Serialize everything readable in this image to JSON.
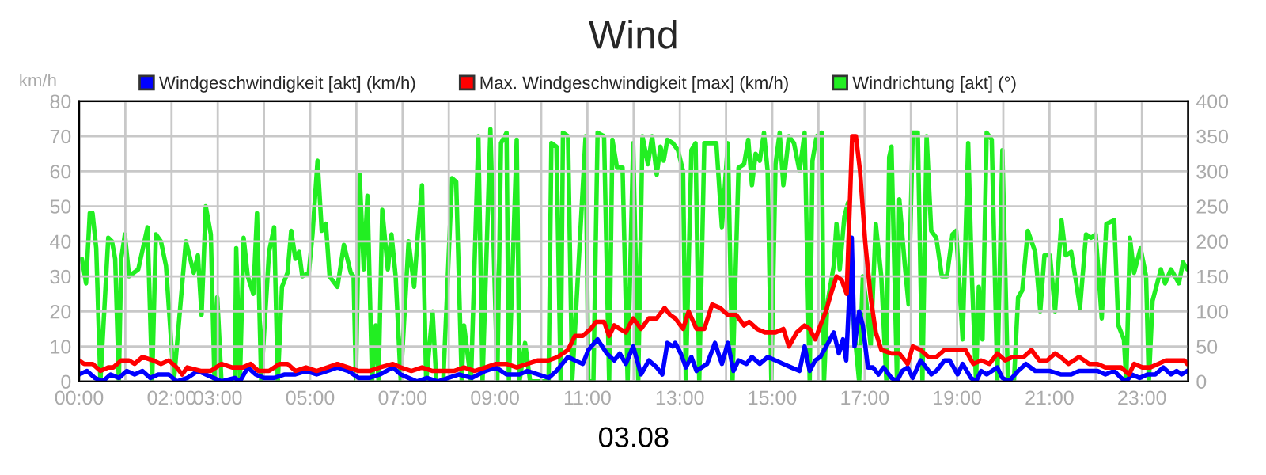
{
  "chart_data": {
    "type": "line",
    "title": "Wind",
    "xlabel": "03.08",
    "ylabel": "km/h",
    "xlim": [
      0,
      24
    ],
    "xticks": [
      {
        "value": 0,
        "label": "00:00"
      },
      {
        "value": 1,
        "label": null
      },
      {
        "value": 2,
        "label": "02:00"
      },
      {
        "value": 3,
        "label": "03:00"
      },
      {
        "value": 4,
        "label": null
      },
      {
        "value": 5,
        "label": "05:00"
      },
      {
        "value": 6,
        "label": null
      },
      {
        "value": 7,
        "label": "07:00"
      },
      {
        "value": 8,
        "label": null
      },
      {
        "value": 9,
        "label": "09:00"
      },
      {
        "value": 10,
        "label": null
      },
      {
        "value": 11,
        "label": "11:00"
      },
      {
        "value": 12,
        "label": null
      },
      {
        "value": 13,
        "label": "13:00"
      },
      {
        "value": 14,
        "label": null
      },
      {
        "value": 15,
        "label": "15:00"
      },
      {
        "value": 16,
        "label": null
      },
      {
        "value": 17,
        "label": "17:00"
      },
      {
        "value": 18,
        "label": null
      },
      {
        "value": 19,
        "label": "19:00"
      },
      {
        "value": 20,
        "label": null
      },
      {
        "value": 21,
        "label": "21:00"
      },
      {
        "value": 22,
        "label": null
      },
      {
        "value": 23,
        "label": "23:00"
      }
    ],
    "ylim": [
      0,
      80
    ],
    "yticks": [
      0,
      10,
      20,
      30,
      40,
      50,
      60,
      70,
      80
    ],
    "y2lim": [
      0,
      400
    ],
    "y2ticks": [
      0,
      50,
      100,
      150,
      200,
      250,
      300,
      350,
      400
    ],
    "grid": true,
    "legend": "top",
    "marker": "none",
    "line_style": "solid",
    "series": [
      {
        "name": "Windgeschwindigkeit [akt] (km/h)",
        "color": "#0000ff",
        "x": [
          0,
          0.17,
          0.34,
          0.51,
          0.68,
          0.86,
          1.03,
          1.2,
          1.37,
          1.54,
          1.71,
          1.94,
          2.11,
          2.34,
          2.57,
          2.74,
          2.91,
          3.08,
          3.37,
          3.48,
          3.65,
          3.82,
          4.0,
          4.22,
          4.45,
          4.68,
          4.91,
          5.14,
          5.37,
          5.59,
          5.82,
          6.05,
          6.28,
          6.51,
          6.79,
          6.96,
          7.13,
          7.31,
          7.53,
          7.76,
          7.99,
          8.22,
          8.5,
          8.79,
          9.02,
          9.25,
          9.53,
          9.7,
          9.93,
          10.16,
          10.33,
          10.58,
          10.73,
          10.9,
          11.02,
          11.22,
          11.42,
          11.58,
          11.7,
          11.83,
          11.99,
          12.16,
          12.33,
          12.5,
          12.62,
          12.73,
          12.85,
          12.9,
          13.02,
          13.13,
          13.25,
          13.36,
          13.59,
          13.76,
          13.91,
          14.04,
          14.16,
          14.27,
          14.44,
          14.56,
          14.73,
          14.9,
          15.07,
          15.24,
          15.41,
          15.59,
          15.7,
          15.81,
          15.93,
          16.04,
          16.21,
          16.33,
          16.44,
          16.53,
          16.6,
          16.65,
          16.72,
          16.78,
          16.88,
          16.96,
          17.07,
          17.18,
          17.3,
          17.41,
          17.58,
          17.7,
          17.81,
          17.93,
          18.04,
          18.21,
          18.33,
          18.44,
          18.55,
          18.73,
          18.84,
          19.01,
          19.12,
          19.3,
          19.41,
          19.52,
          19.64,
          19.87,
          19.98,
          20.12,
          20.32,
          20.49,
          20.69,
          20.86,
          21.01,
          21.24,
          21.47,
          21.64,
          21.81,
          22.04,
          22.21,
          22.4,
          22.55,
          22.66,
          22.78,
          22.95,
          23.12,
          23.29,
          23.46,
          23.63,
          23.75,
          23.86,
          23.98
        ],
        "values": [
          2,
          3,
          1,
          0,
          2,
          1,
          3,
          2,
          3,
          1,
          2,
          2,
          0,
          1,
          3,
          2,
          1,
          0,
          1,
          0,
          4,
          2,
          1,
          1,
          2,
          2,
          3,
          2,
          3,
          4,
          3,
          1,
          1,
          2,
          4,
          2,
          1,
          0,
          1,
          0,
          1,
          2,
          1,
          3,
          4,
          2,
          2,
          3,
          2,
          1,
          3,
          7,
          6,
          5,
          9,
          12,
          8,
          6,
          8,
          5,
          10,
          2,
          6,
          4,
          2,
          11,
          10,
          11,
          8,
          4,
          7,
          3,
          5,
          11,
          5,
          11,
          3,
          6,
          5,
          7,
          5,
          7,
          6,
          5,
          4,
          3,
          10,
          3,
          6,
          7,
          11,
          14,
          8,
          12,
          6,
          20,
          41,
          10,
          20,
          16,
          4,
          4,
          2,
          4,
          1,
          0,
          3,
          4,
          1,
          6,
          4,
          2,
          3,
          6,
          6,
          2,
          5,
          1,
          0,
          3,
          2,
          4,
          1,
          0,
          3,
          5,
          3,
          3,
          3,
          2,
          2,
          3,
          3,
          3,
          2,
          3,
          1,
          0,
          2,
          1,
          2,
          2,
          4,
          2,
          3,
          2,
          3
        ]
      },
      {
        "name": "Max. Windgeschwindigkeit [max] (km/h)",
        "color": "#ff0000",
        "x": [
          0,
          0.11,
          0.29,
          0.46,
          0.63,
          0.74,
          0.91,
          1.08,
          1.2,
          1.37,
          1.6,
          1.77,
          1.94,
          2.11,
          2.23,
          2.34,
          2.63,
          2.85,
          3.08,
          3.31,
          3.54,
          3.71,
          3.88,
          4.11,
          4.34,
          4.51,
          4.68,
          4.91,
          5.14,
          5.37,
          5.59,
          5.82,
          6.05,
          6.28,
          6.51,
          6.79,
          6.96,
          7.19,
          7.42,
          7.65,
          7.88,
          8.11,
          8.33,
          8.56,
          8.79,
          9.02,
          9.25,
          9.47,
          9.7,
          9.93,
          10.16,
          10.36,
          10.58,
          10.73,
          10.9,
          11.07,
          11.19,
          11.36,
          11.47,
          11.58,
          11.7,
          11.83,
          11.99,
          12.16,
          12.33,
          12.5,
          12.67,
          12.79,
          12.9,
          13.07,
          13.19,
          13.36,
          13.53,
          13.7,
          13.87,
          14.04,
          14.22,
          14.39,
          14.5,
          14.67,
          14.84,
          15.07,
          15.24,
          15.36,
          15.53,
          15.7,
          15.81,
          15.93,
          16.04,
          16.16,
          16.27,
          16.39,
          16.5,
          16.61,
          16.73,
          16.81,
          16.9,
          17.01,
          17.13,
          17.24,
          17.36,
          17.58,
          17.75,
          17.93,
          18.04,
          18.21,
          18.38,
          18.55,
          18.73,
          18.95,
          19.18,
          19.35,
          19.52,
          19.7,
          19.87,
          20.04,
          20.21,
          20.44,
          20.61,
          20.78,
          20.95,
          21.12,
          21.24,
          21.41,
          21.64,
          21.86,
          22.04,
          22.21,
          22.4,
          22.55,
          22.72,
          22.83,
          23.01,
          23.18,
          23.35,
          23.52,
          23.75,
          23.92,
          23.98
        ],
        "values": [
          6,
          5,
          5,
          3,
          4,
          4,
          6,
          6,
          5,
          7,
          6,
          5,
          6,
          4,
          2,
          4,
          3,
          3,
          5,
          4,
          4,
          5,
          3,
          3,
          5,
          5,
          3,
          4,
          3,
          4,
          5,
          4,
          3,
          3,
          4,
          5,
          4,
          3,
          4,
          3,
          3,
          3,
          4,
          3,
          4,
          5,
          5,
          4,
          5,
          6,
          6,
          7,
          9,
          13,
          13,
          15,
          17,
          17,
          13,
          16,
          15,
          14,
          18,
          15,
          18,
          18,
          21,
          19,
          18,
          15,
          20,
          15,
          15,
          22,
          21,
          19,
          19,
          16,
          17,
          15,
          14,
          14,
          15,
          10,
          14,
          16,
          15,
          12,
          16,
          20,
          25,
          30,
          29,
          25,
          70,
          70,
          60,
          40,
          24,
          14,
          9,
          8,
          8,
          5,
          10,
          9,
          7,
          7,
          9,
          9,
          9,
          5,
          6,
          5,
          8,
          6,
          7,
          7,
          9,
          6,
          6,
          8,
          7,
          5,
          7,
          5,
          5,
          4,
          4,
          4,
          2,
          5,
          4,
          4,
          5,
          6,
          6,
          6,
          5
        ]
      },
      {
        "name": "Windrichtung [akt] (°)",
        "color": "#22ee22",
        "axis": "y2",
        "x": [
          0.06,
          0.15,
          0.23,
          0.29,
          0.37,
          0.46,
          0.63,
          0.71,
          0.78,
          0.86,
          0.91,
          0.99,
          1.08,
          1.28,
          1.48,
          1.58,
          1.66,
          1.77,
          1.88,
          2.05,
          2.31,
          2.48,
          2.57,
          2.65,
          2.74,
          2.85,
          2.93,
          2.99,
          3.08,
          3.37,
          3.4,
          3.48,
          3.56,
          3.65,
          3.77,
          3.85,
          3.94,
          4.11,
          4.22,
          4.3,
          4.39,
          4.51,
          4.59,
          4.68,
          4.76,
          4.83,
          4.97,
          5.05,
          5.16,
          5.25,
          5.34,
          5.42,
          5.59,
          5.73,
          5.88,
          5.94,
          5.99,
          6.07,
          6.16,
          6.24,
          6.34,
          6.42,
          6.48,
          6.56,
          6.68,
          6.76,
          6.85,
          6.96,
          7.13,
          7.25,
          7.33,
          7.42,
          7.51,
          7.65,
          7.73,
          7.88,
          8.07,
          8.16,
          8.28,
          8.33,
          8.48,
          8.64,
          8.73,
          8.9,
          9.05,
          9.13,
          9.25,
          9.3,
          9.47,
          9.53,
          9.65,
          9.76,
          10.16,
          10.22,
          10.33,
          10.42,
          10.47,
          10.58,
          10.67,
          10.96,
          11.02,
          11.13,
          11.22,
          11.36,
          11.47,
          11.54,
          11.64,
          11.76,
          11.87,
          11.99,
          12.1,
          12.19,
          12.31,
          12.4,
          12.5,
          12.58,
          12.65,
          12.73,
          12.85,
          12.96,
          13.07,
          13.13,
          13.25,
          13.34,
          13.42,
          13.53,
          13.7,
          13.79,
          13.91,
          14.04,
          14.14,
          14.27,
          14.39,
          14.48,
          14.56,
          14.64,
          14.73,
          14.82,
          14.9,
          14.98,
          15.07,
          15.16,
          15.24,
          15.36,
          15.47,
          15.59,
          15.7,
          15.81,
          15.87,
          15.96,
          16.07,
          16.12,
          16.19,
          16.33,
          16.39,
          16.46,
          16.56,
          16.64,
          16.69,
          16.78,
          16.88,
          16.96,
          17.04,
          17.13,
          17.24,
          17.36,
          17.47,
          17.53,
          17.58,
          17.7,
          17.75,
          17.87,
          17.95,
          18.04,
          18.15,
          18.25,
          18.34,
          18.44,
          18.55,
          18.67,
          18.78,
          18.9,
          18.98,
          19.12,
          19.24,
          19.32,
          19.41,
          19.47,
          19.55,
          19.64,
          19.75,
          19.87,
          19.98,
          20.1,
          20.23,
          20.32,
          20.41,
          20.53,
          20.69,
          20.8,
          20.89,
          21.01,
          21.12,
          21.26,
          21.35,
          21.47,
          21.58,
          21.66,
          21.79,
          21.9,
          22.0,
          22.13,
          22.23,
          22.4,
          22.49,
          22.61,
          22.66,
          22.74,
          22.83,
          22.97,
          23.09,
          23.15,
          23.23,
          23.41,
          23.5,
          23.63,
          23.8,
          23.89,
          23.98
        ],
        "values": [
          175,
          140,
          240,
          240,
          190,
          0,
          205,
          200,
          175,
          0,
          175,
          210,
          150,
          160,
          220,
          0,
          210,
          200,
          165,
          0,
          200,
          155,
          180,
          95,
          250,
          210,
          0,
          120,
          0,
          0,
          190,
          0,
          205,
          150,
          125,
          240,
          0,
          185,
          220,
          0,
          135,
          155,
          215,
          175,
          185,
          150,
          155,
          210,
          315,
          215,
          225,
          150,
          135,
          195,
          155,
          150,
          0,
          295,
          160,
          265,
          0,
          80,
          0,
          245,
          160,
          210,
          150,
          0,
          200,
          135,
          210,
          280,
          0,
          100,
          0,
          0,
          290,
          285,
          0,
          80,
          0,
          350,
          0,
          360,
          0,
          340,
          355,
          0,
          345,
          0,
          55,
          0,
          0,
          340,
          335,
          0,
          355,
          350,
          0,
          350,
          0,
          0,
          355,
          350,
          0,
          345,
          305,
          305,
          0,
          340,
          0,
          350,
          310,
          350,
          295,
          335,
          315,
          345,
          340,
          330,
          300,
          0,
          330,
          340,
          0,
          340,
          340,
          340,
          220,
          340,
          0,
          305,
          310,
          345,
          280,
          325,
          315,
          355,
          300,
          0,
          310,
          355,
          280,
          350,
          340,
          300,
          355,
          0,
          315,
          350,
          355,
          0,
          110,
          165,
          225,
          160,
          235,
          255,
          150,
          70,
          0,
          150,
          110,
          50,
          225,
          150,
          0,
          320,
          335,
          0,
          260,
          165,
          110,
          355,
          355,
          0,
          350,
          215,
          205,
          150,
          150,
          210,
          215,
          60,
          340,
          150,
          0,
          135,
          60,
          355,
          345,
          0,
          330,
          0,
          0,
          120,
          130,
          215,
          185,
          100,
          180,
          180,
          100,
          230,
          180,
          185,
          140,
          105,
          210,
          205,
          210,
          90,
          225,
          230,
          80,
          60,
          0,
          205,
          155,
          190,
          150,
          0,
          115,
          160,
          140,
          160,
          140,
          170,
          160
        ]
      }
    ]
  }
}
